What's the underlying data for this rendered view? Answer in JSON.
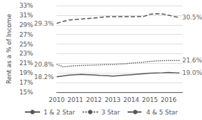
{
  "chart_data": {
    "type": "line",
    "ylabel": "Rent as a % of Income",
    "x": [
      2010,
      2010.33,
      2010.67,
      2011,
      2011.33,
      2011.67,
      2012,
      2012.33,
      2012.67,
      2013,
      2013.33,
      2013.67,
      2014,
      2014.33,
      2014.67,
      2015,
      2015.33,
      2015.67,
      2016,
      2016.33,
      2016.58
    ],
    "series": [
      {
        "name": "1 & 2 Star",
        "color": "#555555",
        "line_style": "solid",
        "values": [
          18.2,
          18.4,
          18.55,
          18.65,
          18.7,
          18.65,
          18.6,
          18.5,
          18.45,
          18.35,
          18.45,
          18.55,
          18.65,
          18.75,
          18.85,
          18.95,
          19.0,
          19.05,
          19.1,
          19.05,
          19.0
        ]
      },
      {
        "name": "3 Star",
        "color": "#555555",
        "line_style": "dotted",
        "values": [
          20.8,
          20.3,
          20.4,
          20.5,
          20.55,
          20.6,
          20.65,
          20.7,
          20.75,
          20.75,
          20.85,
          20.9,
          21.05,
          21.15,
          21.25,
          21.4,
          21.5,
          21.55,
          21.6,
          21.6,
          21.6
        ]
      },
      {
        "name": "4 & 5 Star",
        "color": "#555555",
        "line_style": "dashed",
        "values": [
          29.3,
          29.7,
          30.0,
          30.1,
          30.2,
          30.3,
          30.4,
          30.55,
          30.65,
          30.7,
          30.7,
          30.7,
          30.7,
          30.7,
          30.75,
          31.2,
          31.3,
          31.25,
          31.0,
          30.7,
          30.5
        ]
      }
    ],
    "annotations": [
      {
        "text": "18.2%",
        "x": 2010,
        "y": 18.2
      },
      {
        "text": "20.8%",
        "x": 2010,
        "y": 20.8
      },
      {
        "text": "29.3%",
        "x": 2010,
        "y": 29.3
      },
      {
        "text": "19.0%",
        "x": 2016.58,
        "y": 19.0
      },
      {
        "text": "21.6%",
        "x": 2016.58,
        "y": 21.6
      },
      {
        "text": "30.5%",
        "x": 2016.58,
        "y": 30.5
      }
    ],
    "xlim": [
      2010,
      2016.75
    ],
    "xticks": [
      2010,
      2011,
      2012,
      2013,
      2014,
      2015,
      2016
    ],
    "ylim": [
      15,
      33
    ],
    "yticks": [
      {
        "value": 15,
        "label": "15%"
      },
      {
        "value": 17,
        "label": "17%"
      },
      {
        "value": 19,
        "label": "19%"
      },
      {
        "value": 21,
        "label": "21%"
      },
      {
        "value": 23,
        "label": "23%"
      },
      {
        "value": 25,
        "label": "25%"
      },
      {
        "value": 27,
        "label": "27%"
      },
      {
        "value": 29,
        "label": "29%"
      },
      {
        "value": 31,
        "label": "31%"
      },
      {
        "value": 33,
        "label": "33%"
      }
    ],
    "grid": true,
    "legend": "bottom"
  }
}
